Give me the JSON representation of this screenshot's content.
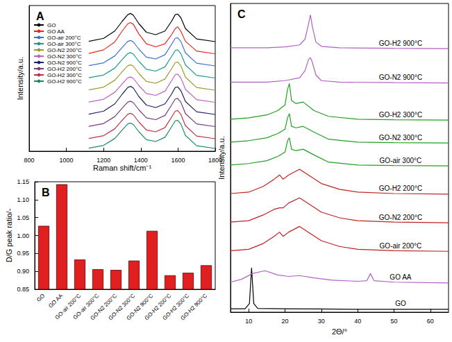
{
  "chart_data": [
    {
      "type": "line",
      "title": "A",
      "xlabel": "Raman shift/cm⁻¹",
      "ylabel": "Intensity/a.u.",
      "xlim": [
        800,
        1800
      ],
      "xticks": [
        800,
        1000,
        1200,
        1400,
        1600,
        1800
      ],
      "ylim": [
        0,
        12
      ],
      "tick_labels": "x",
      "grid": false,
      "legend": "upper left",
      "x": [
        1120,
        1200,
        1260,
        1300,
        1330,
        1345,
        1360,
        1390,
        1430,
        1480,
        1530,
        1565,
        1585,
        1598,
        1615,
        1640,
        1700,
        1800
      ],
      "series": [
        {
          "name": "GO",
          "color": "#000000",
          "values": [
            9.05,
            9.3,
            9.9,
            10.7,
            11.25,
            11.35,
            11.2,
            10.5,
            9.8,
            9.6,
            9.9,
            10.7,
            11.25,
            11.3,
            11,
            10.1,
            9.25,
            9.03
          ]
        },
        {
          "name": "GO AA",
          "color": "#e8231e",
          "values": [
            8.05,
            8.35,
            9,
            9.9,
            10.5,
            10.6,
            10.45,
            9.65,
            8.85,
            8.6,
            8.85,
            9.6,
            10.1,
            10.25,
            9.9,
            9.05,
            8.25,
            8.03
          ]
        },
        {
          "name": "GO-air 200°C",
          "color": "#3a6fd6",
          "values": [
            7.05,
            7.28,
            7.85,
            8.55,
            9.05,
            9.12,
            9,
            8.4,
            7.75,
            7.6,
            7.95,
            8.8,
            9.3,
            9.35,
            9.05,
            8.1,
            7.25,
            7.03
          ]
        },
        {
          "name": "GO-air 300°C",
          "color": "#1a9a8a",
          "values": [
            6.05,
            6.28,
            6.85,
            7.55,
            8.05,
            8.12,
            8,
            7.4,
            6.75,
            6.6,
            6.95,
            7.8,
            8.3,
            8.35,
            8.05,
            7.1,
            6.25,
            6.03
          ]
        },
        {
          "name": "GO-N2 200°C",
          "color": "#9a9a2a",
          "values": [
            5.05,
            5.28,
            5.85,
            6.55,
            7.05,
            7.12,
            7,
            6.4,
            5.75,
            5.6,
            5.95,
            6.8,
            7.3,
            7.35,
            7.05,
            6.1,
            5.25,
            5.03
          ]
        },
        {
          "name": "GO-N2 300°C",
          "color": "#c060c0",
          "values": [
            4.05,
            4.28,
            4.85,
            5.55,
            6.05,
            6.12,
            6,
            5.4,
            4.75,
            4.6,
            4.95,
            5.8,
            6.3,
            6.35,
            6.05,
            5.1,
            4.25,
            4.03
          ]
        },
        {
          "name": "GO-N2 900°C",
          "color": "#20206a",
          "values": [
            3.05,
            3.3,
            3.9,
            4.7,
            5.25,
            5.35,
            5.2,
            4.5,
            3.8,
            3.6,
            3.9,
            4.7,
            5.25,
            5.3,
            5,
            4.1,
            3.25,
            3.03
          ]
        },
        {
          "name": "GO-H2 200°C",
          "color": "#7a3a7a",
          "values": [
            2.05,
            2.28,
            2.85,
            3.55,
            4.05,
            4.12,
            4,
            3.4,
            2.75,
            2.6,
            2.95,
            3.8,
            4.3,
            4.35,
            4.05,
            3.1,
            2.25,
            2.03
          ]
        },
        {
          "name": "GO-H2 300°C",
          "color": "#c03040",
          "values": [
            1.05,
            1.28,
            1.85,
            2.55,
            3.05,
            3.12,
            3,
            2.4,
            1.75,
            1.6,
            1.95,
            2.8,
            3.3,
            3.35,
            3.05,
            2.1,
            1.25,
            1.03
          ]
        },
        {
          "name": "GO-H2 900°C",
          "color": "#1a8a6a",
          "values": [
            0.25,
            0.48,
            1.05,
            1.75,
            2.25,
            2.32,
            2.2,
            1.6,
            0.95,
            0.8,
            1.15,
            2,
            2.5,
            2.55,
            2.25,
            1.3,
            0.45,
            0.23
          ]
        }
      ]
    },
    {
      "type": "bar",
      "title": "B",
      "ylabel": "D/G peak ratio/-",
      "grid": false,
      "color": "#e02020",
      "categories": [
        "GO",
        "GO AA",
        "GO-air 200°C",
        "GO-air 300°C",
        "GO-N2 200°C",
        "GO-N2 300°C",
        "GO-N2 900°C",
        "GO-H2 200°C",
        "GO-H2 300°C",
        "GO-H2 900°C"
      ],
      "values": [
        1.027,
        1.143,
        0.933,
        0.906,
        0.904,
        0.93,
        1.013,
        0.889,
        0.896,
        0.917
      ],
      "ylim": [
        0.85,
        1.15
      ],
      "yticks": [
        0.85,
        {
          "value": 0.9,
          "label": "0.90"
        },
        0.95,
        {
          "value": 1.0,
          "label": "1.00"
        },
        1.05,
        {
          "value": 1.1,
          "label": "1.10"
        },
        1.15
      ]
    },
    {
      "type": "line",
      "title": "C",
      "xlabel": "2Θ/°",
      "ylabel": "Intensity/a.u.",
      "xlim": [
        5,
        65
      ],
      "xticks": [
        10,
        20,
        30,
        40,
        50,
        60
      ],
      "ylim": [
        0,
        10.8
      ],
      "tick_labels": "x",
      "grid": false,
      "series": [
        {
          "name": "GO",
          "color": "#000000",
          "x": [
            5,
            9,
            10.2,
            10.8,
            11.4,
            12.5,
            20,
            30,
            40,
            50,
            65
          ],
          "values": [
            0.12,
            0.12,
            0.3,
            1.55,
            0.3,
            0.13,
            0.12,
            0.11,
            0.1,
            0.1,
            0.1
          ]
        },
        {
          "name": "GO AA",
          "color": "#b060c0",
          "x": [
            5,
            8,
            11,
            14.5,
            18,
            21,
            24,
            28,
            33,
            40,
            42.5,
            43.5,
            44.5,
            50,
            65
          ],
          "values": [
            1.05,
            1.15,
            1.35,
            1.45,
            1.3,
            1.25,
            1.28,
            1.2,
            1.12,
            1.08,
            1.1,
            1.35,
            1.1,
            1.05,
            1.02
          ]
        },
        {
          "name": "GO-air 200°C",
          "color": "#c02020",
          "x": [
            5,
            10,
            14,
            17,
            18.5,
            19.5,
            21,
            24,
            27,
            30,
            35,
            40,
            50,
            65
          ],
          "values": [
            2.15,
            2.2,
            2.4,
            2.65,
            2.8,
            2.65,
            2.8,
            3,
            2.75,
            2.5,
            2.3,
            2.2,
            2.15,
            2.13
          ]
        },
        {
          "name": "GO-N2 200°C",
          "color": "#c02020",
          "x": [
            5,
            10,
            14,
            17,
            18.5,
            19.5,
            21,
            24,
            27,
            30,
            35,
            40,
            50,
            65
          ],
          "values": [
            3.15,
            3.2,
            3.4,
            3.6,
            3.65,
            3.65,
            3.82,
            4,
            3.75,
            3.5,
            3.3,
            3.2,
            3.15,
            3.13
          ]
        },
        {
          "name": "GO-H2 200°C",
          "color": "#c02020",
          "x": [
            5,
            10,
            14,
            17,
            18.5,
            19.5,
            21,
            24,
            27,
            30,
            35,
            40,
            50,
            65
          ],
          "values": [
            4.15,
            4.2,
            4.4,
            4.65,
            4.8,
            4.65,
            4.8,
            5,
            4.75,
            4.5,
            4.3,
            4.2,
            4.15,
            4.13
          ]
        },
        {
          "name": "GO-air 300°C",
          "color": "#20a020",
          "x": [
            5,
            10,
            15,
            18,
            20,
            20.7,
            21.2,
            21.8,
            23,
            25,
            28,
            32,
            40,
            50,
            65
          ],
          "values": [
            5.15,
            5.2,
            5.3,
            5.45,
            5.6,
            6,
            6.1,
            5.7,
            5.65,
            5.7,
            5.5,
            5.25,
            5.15,
            5.13,
            5.12
          ]
        },
        {
          "name": "GO-N2 300°C",
          "color": "#20a020",
          "x": [
            5,
            10,
            15,
            18,
            20,
            20.7,
            21.2,
            21.8,
            23,
            25,
            28,
            32,
            40,
            50,
            65
          ],
          "values": [
            5.95,
            6,
            6.1,
            6.25,
            6.4,
            6.8,
            6.95,
            6.5,
            6.45,
            6.5,
            6.3,
            6.05,
            5.95,
            5.93,
            5.92
          ]
        },
        {
          "name": "GO-H2 300°C",
          "color": "#20a020",
          "x": [
            5,
            10,
            15,
            18,
            20,
            20.7,
            21.2,
            21.8,
            23,
            25,
            28,
            32,
            40,
            50,
            65
          ],
          "values": [
            6.75,
            6.8,
            6.9,
            7.05,
            7.25,
            7.8,
            8,
            7.4,
            7.3,
            7.35,
            7.05,
            6.85,
            6.75,
            6.73,
            6.72
          ]
        },
        {
          "name": "GO-N2 900°C",
          "color": "#b060c0",
          "x": [
            5,
            15,
            20,
            24,
            25.5,
            26.5,
            27,
            27.5,
            28.5,
            30,
            35,
            50,
            65
          ],
          "values": [
            8.05,
            8.05,
            8.1,
            8.2,
            8.45,
            8.85,
            8.9,
            8.75,
            8.3,
            8.1,
            8.05,
            8.03,
            8.02
          ]
        },
        {
          "name": "GO-H2 900°C",
          "color": "#b060c0",
          "x": [
            5,
            15,
            20,
            24,
            25.5,
            26.5,
            27,
            27.5,
            28.5,
            30,
            35,
            50,
            65
          ],
          "values": [
            9.25,
            9.25,
            9.28,
            9.35,
            9.55,
            10.1,
            10.4,
            10.0,
            9.45,
            9.3,
            9.25,
            9.23,
            9.22
          ]
        }
      ]
    }
  ]
}
